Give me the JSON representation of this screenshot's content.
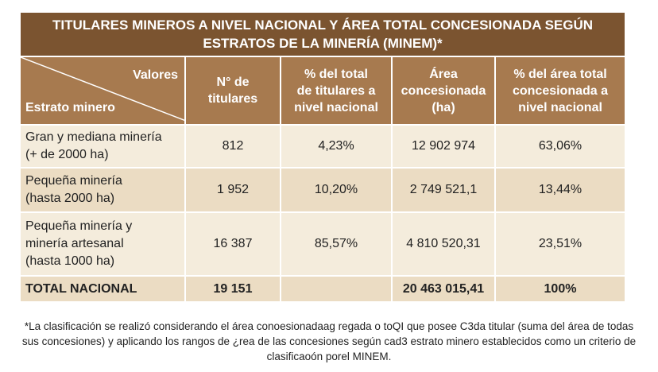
{
  "title": "TITULARES MINEROS A NIVEL NACIONAL Y ÁREA TOTAL CONCESIONADA SEGÚN\nESTRATOS DE LA MINERÍA (MINEM)*",
  "header": {
    "valores": "Valores",
    "estrato": "Estrato minero",
    "columns": [
      "N° de\ntitulares",
      "% del total\nde titulares a\nnivel nacional",
      "Área\nconcesionada\n(ha)",
      "% del área total\nconcesionada a\nnivel nacional"
    ]
  },
  "rows": [
    [
      "Gran y mediana minería\n(+ de 2000 ha)",
      "812",
      "4,23%",
      "12 902 974",
      "63,06%"
    ],
    [
      "Pequeña minería\n(hasta 2000 ha)",
      "1 952",
      "10,20%",
      "2 749 521,1",
      "13,44%"
    ],
    [
      "Pequeña minería y\nminería artesanal\n(hasta 1000 ha)",
      "16 387",
      "85,57%",
      "4 810 520,31",
      "23,51%"
    ]
  ],
  "total": {
    "label": "TOTAL NACIONAL",
    "titulares": "19 151",
    "area": "20 463 015,41",
    "area_pct": "100%"
  },
  "footnote": "*La clasificación se realizó considerando el área conoesionadaag regada o toQI que posee C3da titular (suma del área de todas sus concesiones) y aplicando los rangos de ¿rea de las concesiones según cad3 estrato minero establecidos como un criterio de clasificaoón porel MINEM."
}
